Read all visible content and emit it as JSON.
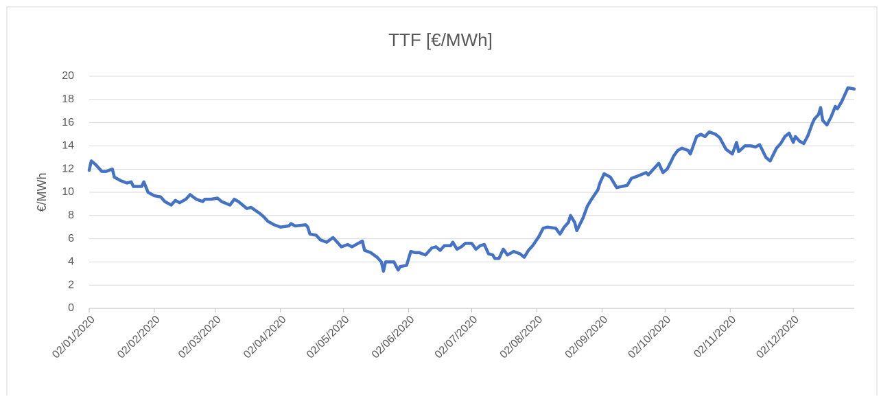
{
  "chart_data": {
    "type": "line",
    "title": "TTF [€/MWh]",
    "y_label": "€/MWh",
    "ylim": [
      0,
      20
    ],
    "yticks": [
      0,
      2,
      4,
      6,
      8,
      10,
      12,
      14,
      16,
      18,
      20
    ],
    "xlim": [
      "2020-01-02",
      "2020-12-31"
    ],
    "xticks": [
      {
        "value": "2020-01-02",
        "label": "02/01/2020"
      },
      {
        "value": "2020-02-02",
        "label": "02/02/2020"
      },
      {
        "value": "2020-03-02",
        "label": "02/03/2020"
      },
      {
        "value": "2020-04-02",
        "label": "02/04/2020"
      },
      {
        "value": "2020-05-02",
        "label": "02/05/2020"
      },
      {
        "value": "2020-06-02",
        "label": "02/06/2020"
      },
      {
        "value": "2020-07-02",
        "label": "02/07/2020"
      },
      {
        "value": "2020-08-02",
        "label": "02/08/2020"
      },
      {
        "value": "2020-09-02",
        "label": "02/09/2020"
      },
      {
        "value": "2020-10-02",
        "label": "02/10/2020"
      },
      {
        "value": "2020-11-02",
        "label": "02/11/2020"
      },
      {
        "value": "2020-12-02",
        "label": "02/12/2020"
      }
    ],
    "grid": true,
    "x": [
      "2020-01-02",
      "2020-01-03",
      "2020-01-05",
      "2020-01-08",
      "2020-01-10",
      "2020-01-13",
      "2020-01-14",
      "2020-01-17",
      "2020-01-20",
      "2020-01-22",
      "2020-01-23",
      "2020-01-27",
      "2020-01-28",
      "2020-01-30",
      "2020-02-02",
      "2020-02-05",
      "2020-02-07",
      "2020-02-10",
      "2020-02-12",
      "2020-02-14",
      "2020-02-17",
      "2020-02-19",
      "2020-02-22",
      "2020-02-25",
      "2020-02-26",
      "2020-02-29",
      "2020-03-03",
      "2020-03-05",
      "2020-03-09",
      "2020-03-11",
      "2020-03-13",
      "2020-03-17",
      "2020-03-19",
      "2020-03-23",
      "2020-03-25",
      "2020-03-27",
      "2020-03-30",
      "2020-04-02",
      "2020-04-06",
      "2020-04-07",
      "2020-04-09",
      "2020-04-14",
      "2020-04-15",
      "2020-04-16",
      "2020-04-19",
      "2020-04-21",
      "2020-04-24",
      "2020-04-27",
      "2020-04-29",
      "2020-05-01",
      "2020-05-04",
      "2020-05-06",
      "2020-05-08",
      "2020-05-11",
      "2020-05-12",
      "2020-05-15",
      "2020-05-18",
      "2020-05-20",
      "2020-05-21",
      "2020-05-22",
      "2020-05-26",
      "2020-05-28",
      "2020-05-29",
      "2020-06-01",
      "2020-06-03",
      "2020-06-05",
      "2020-06-07",
      "2020-06-10",
      "2020-06-13",
      "2020-06-15",
      "2020-06-17",
      "2020-06-19",
      "2020-06-22",
      "2020-06-23",
      "2020-06-25",
      "2020-06-27",
      "2020-06-29",
      "2020-07-02",
      "2020-07-04",
      "2020-07-06",
      "2020-07-08",
      "2020-07-10",
      "2020-07-12",
      "2020-07-13",
      "2020-07-15",
      "2020-07-17",
      "2020-07-19",
      "2020-07-22",
      "2020-07-25",
      "2020-07-27",
      "2020-07-29",
      "2020-07-31",
      "2020-08-03",
      "2020-08-05",
      "2020-08-07",
      "2020-08-11",
      "2020-08-13",
      "2020-08-15",
      "2020-08-17",
      "2020-08-18",
      "2020-08-20",
      "2020-08-21",
      "2020-08-24",
      "2020-08-26",
      "2020-08-28",
      "2020-08-31",
      "2020-09-01",
      "2020-09-03",
      "2020-09-06",
      "2020-09-07",
      "2020-09-09",
      "2020-09-14",
      "2020-09-16",
      "2020-09-19",
      "2020-09-23",
      "2020-09-24",
      "2020-09-29",
      "2020-10-01",
      "2020-10-03",
      "2020-10-05",
      "2020-10-06",
      "2020-10-08",
      "2020-10-10",
      "2020-10-13",
      "2020-10-14",
      "2020-10-17",
      "2020-10-19",
      "2020-10-21",
      "2020-10-23",
      "2020-10-26",
      "2020-10-28",
      "2020-10-31",
      "2020-11-03",
      "2020-11-05",
      "2020-11-06",
      "2020-11-09",
      "2020-11-12",
      "2020-11-14",
      "2020-11-16",
      "2020-11-19",
      "2020-11-21",
      "2020-11-24",
      "2020-11-26",
      "2020-11-28",
      "2020-11-30",
      "2020-12-02",
      "2020-12-03",
      "2020-12-05",
      "2020-12-07",
      "2020-12-09",
      "2020-12-11",
      "2020-12-12",
      "2020-12-14",
      "2020-12-15",
      "2020-12-16",
      "2020-12-18",
      "2020-12-20",
      "2020-12-22",
      "2020-12-23",
      "2020-12-25",
      "2020-12-28",
      "2020-12-31"
    ],
    "series": [
      {
        "name": "TTF",
        "color": "#4472c4",
        "values": [
          11.9,
          12.7,
          12.4,
          11.8,
          11.8,
          12.0,
          11.3,
          11.0,
          10.8,
          10.9,
          10.5,
          10.5,
          10.9,
          10.0,
          9.7,
          9.6,
          9.2,
          8.9,
          9.3,
          9.1,
          9.4,
          9.8,
          9.4,
          9.2,
          9.4,
          9.4,
          9.5,
          9.2,
          8.9,
          9.4,
          9.2,
          8.6,
          8.7,
          8.2,
          7.9,
          7.5,
          7.2,
          7.0,
          7.1,
          7.3,
          7.1,
          7.2,
          7.0,
          6.4,
          6.3,
          5.9,
          5.7,
          6.1,
          5.7,
          5.3,
          5.5,
          5.3,
          5.5,
          5.8,
          5.0,
          4.8,
          4.4,
          4.0,
          3.2,
          4.0,
          4.0,
          3.3,
          3.6,
          3.7,
          4.9,
          4.8,
          4.8,
          4.6,
          5.2,
          5.3,
          5.0,
          5.4,
          5.4,
          5.7,
          5.1,
          5.3,
          5.6,
          5.6,
          5.1,
          5.4,
          5.5,
          4.7,
          4.6,
          4.3,
          4.3,
          5.1,
          4.6,
          4.9,
          4.7,
          4.4,
          5.0,
          5.4,
          6.2,
          6.9,
          7.0,
          6.9,
          6.4,
          7.0,
          7.4,
          8.0,
          7.4,
          6.7,
          7.8,
          8.8,
          9.4,
          10.2,
          10.8,
          11.6,
          11.3,
          11.0,
          10.4,
          10.6,
          11.2,
          11.4,
          11.7,
          11.5,
          12.5,
          11.7,
          12.0,
          12.7,
          13.1,
          13.6,
          13.8,
          13.6,
          13.3,
          14.8,
          15.0,
          14.8,
          15.2,
          15.0,
          14.7,
          13.7,
          13.3,
          14.3,
          13.5,
          14.0,
          14.0,
          13.9,
          14.1,
          13.0,
          12.7,
          13.8,
          14.2,
          14.8,
          15.1,
          14.3,
          14.8,
          14.4,
          14.2,
          14.9,
          15.9,
          16.3,
          16.7,
          17.3,
          16.2,
          15.8,
          16.5,
          17.4,
          17.2,
          17.8,
          19.0,
          18.9
        ]
      }
    ]
  }
}
